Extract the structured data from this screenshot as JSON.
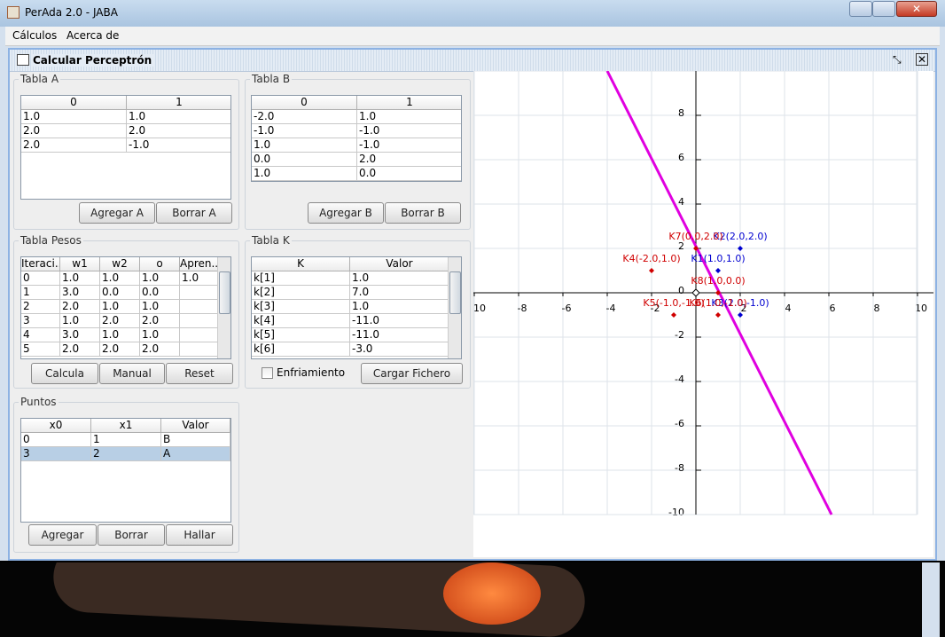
{
  "window": {
    "title": "PerAda 2.0 - JABA"
  },
  "menu": [
    "Cálculos",
    "Acerca de"
  ],
  "frame": {
    "title": "Calcular Perceptrón"
  },
  "panels": [
    {
      "title": "Tabla A",
      "table": {
        "headers": [
          "0",
          "1"
        ],
        "rows": [
          [
            "1.0",
            "1.0"
          ],
          [
            "2.0",
            "2.0"
          ],
          [
            "2.0",
            "-1.0"
          ]
        ]
      },
      "buttons": [
        "Agregar A",
        "Borrar A"
      ]
    },
    {
      "title": "Tabla B",
      "table": {
        "headers": [
          "0",
          "1"
        ],
        "rows": [
          [
            "-2.0",
            "1.0"
          ],
          [
            "-1.0",
            "-1.0"
          ],
          [
            "1.0",
            "-1.0"
          ],
          [
            "0.0",
            "2.0"
          ],
          [
            "1.0",
            "0.0"
          ]
        ]
      },
      "buttons": [
        "Agregar B",
        "Borrar B"
      ]
    },
    {
      "title": "Tabla Pesos",
      "table": {
        "headers": [
          "Iteraci...",
          "w1",
          "w2",
          "o",
          "Apren..."
        ],
        "rows": [
          [
            "0",
            "1.0",
            "1.0",
            "1.0",
            "1.0"
          ],
          [
            "1",
            "3.0",
            "0.0",
            "0.0"
          ],
          [
            "2",
            "2.0",
            "1.0",
            "1.0"
          ],
          [
            "3",
            "1.0",
            "2.0",
            "2.0"
          ],
          [
            "4",
            "3.0",
            "1.0",
            "1.0"
          ],
          [
            "5",
            "2.0",
            "2.0",
            "2.0"
          ]
        ]
      },
      "buttons": [
        "Calcula",
        "Manual",
        "Reset"
      ]
    },
    {
      "title": "Tabla K",
      "table": {
        "headers": [
          "K",
          "Valor"
        ],
        "rows": [
          [
            "k[1]",
            "1.0"
          ],
          [
            "k[2]",
            "7.0"
          ],
          [
            "k[3]",
            "1.0"
          ],
          [
            "k[4]",
            "-11.0"
          ],
          [
            "k[5]",
            "-11.0"
          ],
          [
            "k[6]",
            "-3.0"
          ]
        ]
      },
      "checkbox": "Enfriamiento",
      "buttons": [
        "Cargar Fichero"
      ]
    },
    {
      "title": "Puntos",
      "table": {
        "headers": [
          "x0",
          "x1",
          "Valor"
        ],
        "rows": [
          [
            "0",
            "1",
            "B"
          ],
          [
            "3",
            "2",
            "A"
          ]
        ],
        "selected_row": 1
      },
      "buttons": [
        "Agregar",
        "Borrar",
        "Hallar"
      ]
    }
  ],
  "plot": {
    "xlim": [
      -10,
      10
    ],
    "ylim": [
      -10,
      10
    ],
    "xticks": [
      -10,
      -8,
      -6,
      -4,
      -2,
      2,
      4,
      6,
      8,
      10
    ],
    "yticks": [
      -10,
      -8,
      -6,
      -4,
      -2,
      0,
      2,
      4,
      6,
      8
    ],
    "grid": true,
    "line": {
      "x": [
        -4,
        6.12
      ],
      "y": [
        10,
        -10
      ],
      "color": "#e000e0"
    },
    "points": [
      {
        "label": "K1(1.0,1.0)",
        "x": 1,
        "y": 1,
        "color": "#0000d0"
      },
      {
        "label": "K2(2.0,2.0)",
        "x": 2,
        "y": 2,
        "color": "#0000d0"
      },
      {
        "label": "K3(2.0,-1.0)",
        "x": 2,
        "y": -1,
        "color": "#0000d0"
      },
      {
        "label": "K4(-2.0,1.0)",
        "x": -2,
        "y": 1,
        "color": "#d00000"
      },
      {
        "label": "K5(-1.0,-1.0)",
        "x": -1,
        "y": -1,
        "color": "#d00000"
      },
      {
        "label": "K6(1.0,-1.0)",
        "x": 1,
        "y": -1,
        "color": "#d00000"
      },
      {
        "label": "K7(0.0,2.0)",
        "x": 0,
        "y": 2,
        "color": "#d00000"
      },
      {
        "label": "K8(1.0,0.0)",
        "x": 1,
        "y": 0,
        "color": "#d00000"
      }
    ]
  }
}
